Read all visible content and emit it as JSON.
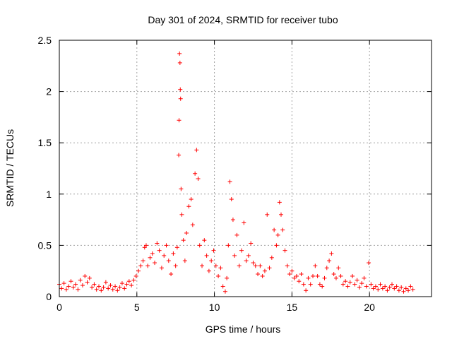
{
  "chart_data": {
    "type": "scatter",
    "title": "Day 301 of 2024, SRMTID for receiver tubo",
    "xlabel": "GPS time / hours",
    "ylabel": "SRMTID / TECUs",
    "xlim": [
      0,
      24
    ],
    "ylim": [
      0,
      2.5
    ],
    "x_ticks": [
      {
        "value": 0,
        "label": "0"
      },
      {
        "value": 5,
        "label": "5"
      },
      {
        "value": 10,
        "label": "10"
      },
      {
        "value": 15,
        "label": "15"
      },
      {
        "value": 20,
        "label": "20"
      }
    ],
    "y_ticks": [
      {
        "value": 0,
        "label": "0"
      },
      {
        "value": 0.5,
        "label": "0.5"
      },
      {
        "value": 1,
        "label": "1"
      },
      {
        "value": 1.5,
        "label": "1.5"
      },
      {
        "value": 2,
        "label": "2"
      },
      {
        "value": 2.5,
        "label": "2.5"
      }
    ],
    "grid": true,
    "marker": "plus",
    "series": [
      {
        "name": "SRMTID",
        "color": "#ff0000",
        "points": [
          [
            0.0,
            0.12
          ],
          [
            0.15,
            0.08
          ],
          [
            0.3,
            0.13
          ],
          [
            0.45,
            0.07
          ],
          [
            0.6,
            0.1
          ],
          [
            0.75,
            0.15
          ],
          [
            0.9,
            0.09
          ],
          [
            1.05,
            0.12
          ],
          [
            1.2,
            0.07
          ],
          [
            1.35,
            0.16
          ],
          [
            1.5,
            0.11
          ],
          [
            1.65,
            0.2
          ],
          [
            1.8,
            0.14
          ],
          [
            1.95,
            0.18
          ],
          [
            2.1,
            0.09
          ],
          [
            2.25,
            0.12
          ],
          [
            2.4,
            0.07
          ],
          [
            2.55,
            0.1
          ],
          [
            2.7,
            0.06
          ],
          [
            2.85,
            0.09
          ],
          [
            3.0,
            0.14
          ],
          [
            3.15,
            0.08
          ],
          [
            3.3,
            0.11
          ],
          [
            3.45,
            0.07
          ],
          [
            3.6,
            0.1
          ],
          [
            3.75,
            0.06
          ],
          [
            3.9,
            0.09
          ],
          [
            4.05,
            0.13
          ],
          [
            4.2,
            0.08
          ],
          [
            4.35,
            0.12
          ],
          [
            4.5,
            0.15
          ],
          [
            4.65,
            0.11
          ],
          [
            4.8,
            0.16
          ],
          [
            4.95,
            0.2
          ],
          [
            5.1,
            0.25
          ],
          [
            5.25,
            0.3
          ],
          [
            5.4,
            0.35
          ],
          [
            5.5,
            0.48
          ],
          [
            5.6,
            0.5
          ],
          [
            5.7,
            0.3
          ],
          [
            5.85,
            0.38
          ],
          [
            6.0,
            0.42
          ],
          [
            6.15,
            0.33
          ],
          [
            6.3,
            0.52
          ],
          [
            6.45,
            0.45
          ],
          [
            6.6,
            0.28
          ],
          [
            6.75,
            0.4
          ],
          [
            6.9,
            0.5
          ],
          [
            7.05,
            0.35
          ],
          [
            7.2,
            0.22
          ],
          [
            7.35,
            0.42
          ],
          [
            7.5,
            0.3
          ],
          [
            7.6,
            0.48
          ],
          [
            7.7,
            1.38
          ],
          [
            7.72,
            1.72
          ],
          [
            7.75,
            2.37
          ],
          [
            7.78,
            2.28
          ],
          [
            7.8,
            2.02
          ],
          [
            7.82,
            1.93
          ],
          [
            7.85,
            1.05
          ],
          [
            7.9,
            0.8
          ],
          [
            8.0,
            0.55
          ],
          [
            8.1,
            0.35
          ],
          [
            8.2,
            0.62
          ],
          [
            8.35,
            0.88
          ],
          [
            8.5,
            0.95
          ],
          [
            8.6,
            0.7
          ],
          [
            8.75,
            1.2
          ],
          [
            8.85,
            1.43
          ],
          [
            8.95,
            1.15
          ],
          [
            9.05,
            0.5
          ],
          [
            9.2,
            0.3
          ],
          [
            9.35,
            0.55
          ],
          [
            9.5,
            0.4
          ],
          [
            9.65,
            0.25
          ],
          [
            9.8,
            0.35
          ],
          [
            9.95,
            0.45
          ],
          [
            10.1,
            0.3
          ],
          [
            10.25,
            0.2
          ],
          [
            10.4,
            0.28
          ],
          [
            10.55,
            0.1
          ],
          [
            10.7,
            0.05
          ],
          [
            10.8,
            0.18
          ],
          [
            10.9,
            0.5
          ],
          [
            11.0,
            1.12
          ],
          [
            11.1,
            0.95
          ],
          [
            11.2,
            0.75
          ],
          [
            11.3,
            0.4
          ],
          [
            11.45,
            0.6
          ],
          [
            11.6,
            0.3
          ],
          [
            11.75,
            0.45
          ],
          [
            11.9,
            0.72
          ],
          [
            12.05,
            0.35
          ],
          [
            12.2,
            0.4
          ],
          [
            12.35,
            0.52
          ],
          [
            12.5,
            0.33
          ],
          [
            12.65,
            0.3
          ],
          [
            12.8,
            0.22
          ],
          [
            12.95,
            0.3
          ],
          [
            13.1,
            0.2
          ],
          [
            13.25,
            0.25
          ],
          [
            13.4,
            0.8
          ],
          [
            13.55,
            0.28
          ],
          [
            13.7,
            0.38
          ],
          [
            13.85,
            0.65
          ],
          [
            14.0,
            0.5
          ],
          [
            14.1,
            0.6
          ],
          [
            14.2,
            0.92
          ],
          [
            14.3,
            0.8
          ],
          [
            14.4,
            0.65
          ],
          [
            14.55,
            0.45
          ],
          [
            14.7,
            0.3
          ],
          [
            14.85,
            0.22
          ],
          [
            15.0,
            0.25
          ],
          [
            15.15,
            0.18
          ],
          [
            15.3,
            0.2
          ],
          [
            15.45,
            0.15
          ],
          [
            15.6,
            0.22
          ],
          [
            15.75,
            0.12
          ],
          [
            15.9,
            0.06
          ],
          [
            16.05,
            0.18
          ],
          [
            16.2,
            0.12
          ],
          [
            16.35,
            0.2
          ],
          [
            16.5,
            0.3
          ],
          [
            16.65,
            0.2
          ],
          [
            16.8,
            0.12
          ],
          [
            16.95,
            0.1
          ],
          [
            17.1,
            0.18
          ],
          [
            17.25,
            0.28
          ],
          [
            17.4,
            0.35
          ],
          [
            17.55,
            0.42
          ],
          [
            17.7,
            0.22
          ],
          [
            17.85,
            0.18
          ],
          [
            18.0,
            0.28
          ],
          [
            18.15,
            0.2
          ],
          [
            18.3,
            0.12
          ],
          [
            18.45,
            0.15
          ],
          [
            18.6,
            0.1
          ],
          [
            18.75,
            0.14
          ],
          [
            18.9,
            0.2
          ],
          [
            19.05,
            0.12
          ],
          [
            19.2,
            0.16
          ],
          [
            19.35,
            0.09
          ],
          [
            19.5,
            0.13
          ],
          [
            19.65,
            0.18
          ],
          [
            19.8,
            0.1
          ],
          [
            19.95,
            0.33
          ],
          [
            20.1,
            0.12
          ],
          [
            20.25,
            0.08
          ],
          [
            20.4,
            0.1
          ],
          [
            20.55,
            0.07
          ],
          [
            20.7,
            0.12
          ],
          [
            20.85,
            0.08
          ],
          [
            21.0,
            0.1
          ],
          [
            21.15,
            0.06
          ],
          [
            21.3,
            0.09
          ],
          [
            21.45,
            0.12
          ],
          [
            21.6,
            0.08
          ],
          [
            21.75,
            0.1
          ],
          [
            21.9,
            0.06
          ],
          [
            22.05,
            0.09
          ],
          [
            22.2,
            0.05
          ],
          [
            22.35,
            0.08
          ],
          [
            22.5,
            0.06
          ],
          [
            22.65,
            0.1
          ],
          [
            22.8,
            0.07
          ]
        ]
      }
    ]
  }
}
